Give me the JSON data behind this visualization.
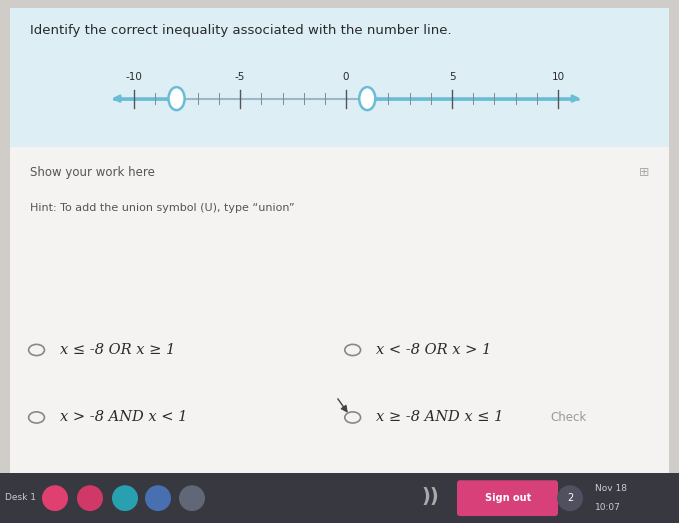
{
  "title": "Identify the correct inequality associated with the number line.",
  "number_line": {
    "xmin": -11.5,
    "xmax": 11.5,
    "tick_major": [
      -10,
      -5,
      0,
      5,
      10
    ],
    "tick_major_labels": [
      "-10",
      "-5",
      "0",
      "5",
      "10"
    ],
    "open_circles": [
      -8,
      1
    ],
    "line_color": "#6bbcd6",
    "circle_edge_color": "#6bbcd6",
    "circle_fill_color": "#ffffff",
    "base_color": "#9ab8c8"
  },
  "answer_choices": [
    "x ≤ -8 OR x ≥ 1",
    "x < -8 OR x > 1",
    "x > -8 AND x < 1",
    "x ≥ -8 AND x ≤ 1"
  ],
  "show_work_label": "Show your work here",
  "hint_label": "Hint: To add the union symbol (U), type “union”",
  "check_label": "Check",
  "outer_bg": "#d0ccc8",
  "card_bg": "#f5f3f1",
  "number_line_panel_bg": "#ddeef5",
  "lower_bg": "#edeae6",
  "taskbar_bg": "#383840",
  "text_color_dark": "#2a2a2a",
  "text_color_mid": "#555555",
  "text_color_light": "#888888",
  "radio_color": "#aaaaaa"
}
